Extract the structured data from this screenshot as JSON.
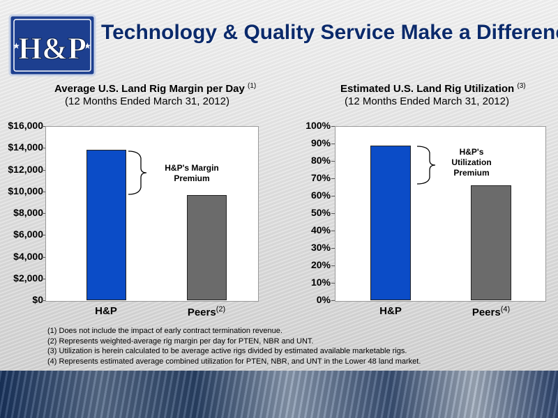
{
  "slide": {
    "title": "Technology & Quality Service Make a Difference",
    "logo_text": "H&P"
  },
  "colors": {
    "hp_bar": "#0b4cc7",
    "peers_bar": "#6b6b6b",
    "title": "#0b2a6b"
  },
  "chart_data": [
    {
      "type": "bar",
      "title": "Average U.S. Land Rig Margin per Day",
      "title_footnote": "(1)",
      "subtitle": "(12 Months Ended March 31, 2012)",
      "categories": [
        "H&P",
        "Peers"
      ],
      "category_footnotes": [
        "",
        "(2)"
      ],
      "values": [
        13800,
        9650
      ],
      "ylim": [
        0,
        16000
      ],
      "yticks": [
        0,
        2000,
        4000,
        6000,
        8000,
        10000,
        12000,
        14000,
        16000
      ],
      "ytick_labels": [
        "$0",
        "$2,000",
        "$4,000",
        "$6,000",
        "$8,000",
        "$10,000",
        "$12,000",
        "$14,000",
        "$16,000"
      ],
      "annotation": "H&P's Margin Premium",
      "grid": false
    },
    {
      "type": "bar",
      "title": "Estimated U.S. Land Rig Utilization",
      "title_footnote": "(3)",
      "subtitle": "(12 Months Ended March 31, 2012)",
      "categories": [
        "H&P",
        "Peers"
      ],
      "category_footnotes": [
        "",
        "(4)"
      ],
      "values": [
        89,
        66
      ],
      "ylim": [
        0,
        100
      ],
      "yticks": [
        0,
        10,
        20,
        30,
        40,
        50,
        60,
        70,
        80,
        90,
        100
      ],
      "ytick_labels": [
        "0%",
        "10%",
        "20%",
        "30%",
        "40%",
        "50%",
        "60%",
        "70%",
        "80%",
        "90%",
        "100%"
      ],
      "annotation": "H&P's Utilization Premium",
      "grid": false
    }
  ],
  "footnotes": [
    "(1) Does not include the impact of early contract termination revenue.",
    "(2) Represents weighted-average rig margin per day for PTEN, NBR and UNT.",
    "(3) Utilization is herein calculated to be average active rigs divided by estimated available marketable rigs.",
    "(4) Represents estimated average combined utilization for PTEN, NBR, and UNT in the Lower 48 land market."
  ]
}
